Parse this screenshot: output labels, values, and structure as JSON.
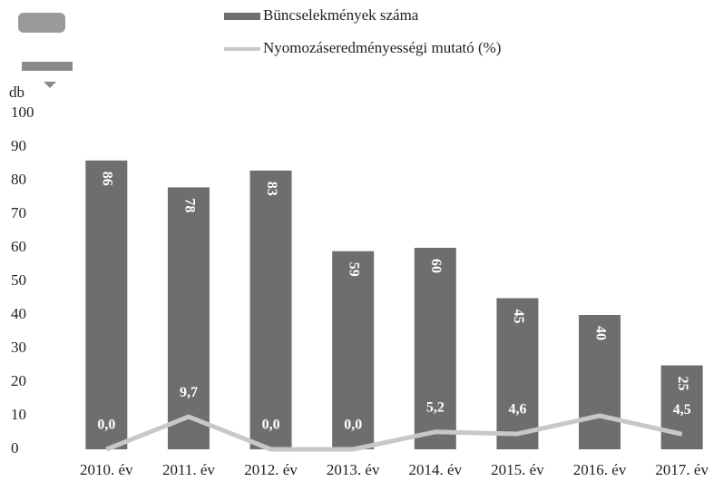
{
  "chart_data": {
    "type": "bar",
    "y_label": "db",
    "categories": [
      "2010. év",
      "2011. év",
      "2012. év",
      "2013. év",
      "2014. év",
      "2015. év",
      "2016. év",
      "2017. év"
    ],
    "series": [
      {
        "name": "Büncselekmények száma",
        "type": "bar",
        "color": "#6e6e6e",
        "values": [
          86,
          78,
          83,
          59,
          60,
          45,
          40,
          25
        ]
      },
      {
        "name": "Nyomozáseredményességi mutató (%)",
        "type": "line",
        "color": "#c8c8c8",
        "values": [
          0.0,
          9.7,
          0.0,
          0.0,
          5.2,
          4.6,
          10,
          4.5
        ],
        "value_labels": [
          "0,0",
          "9,7",
          "0,0",
          "0,0",
          "5,2",
          "4,6",
          null,
          "4,5"
        ]
      }
    ],
    "ylim": [
      0,
      100
    ],
    "yticks": [
      0,
      10,
      20,
      30,
      40,
      50,
      60,
      70,
      80,
      90,
      100
    ],
    "legend": "top"
  }
}
